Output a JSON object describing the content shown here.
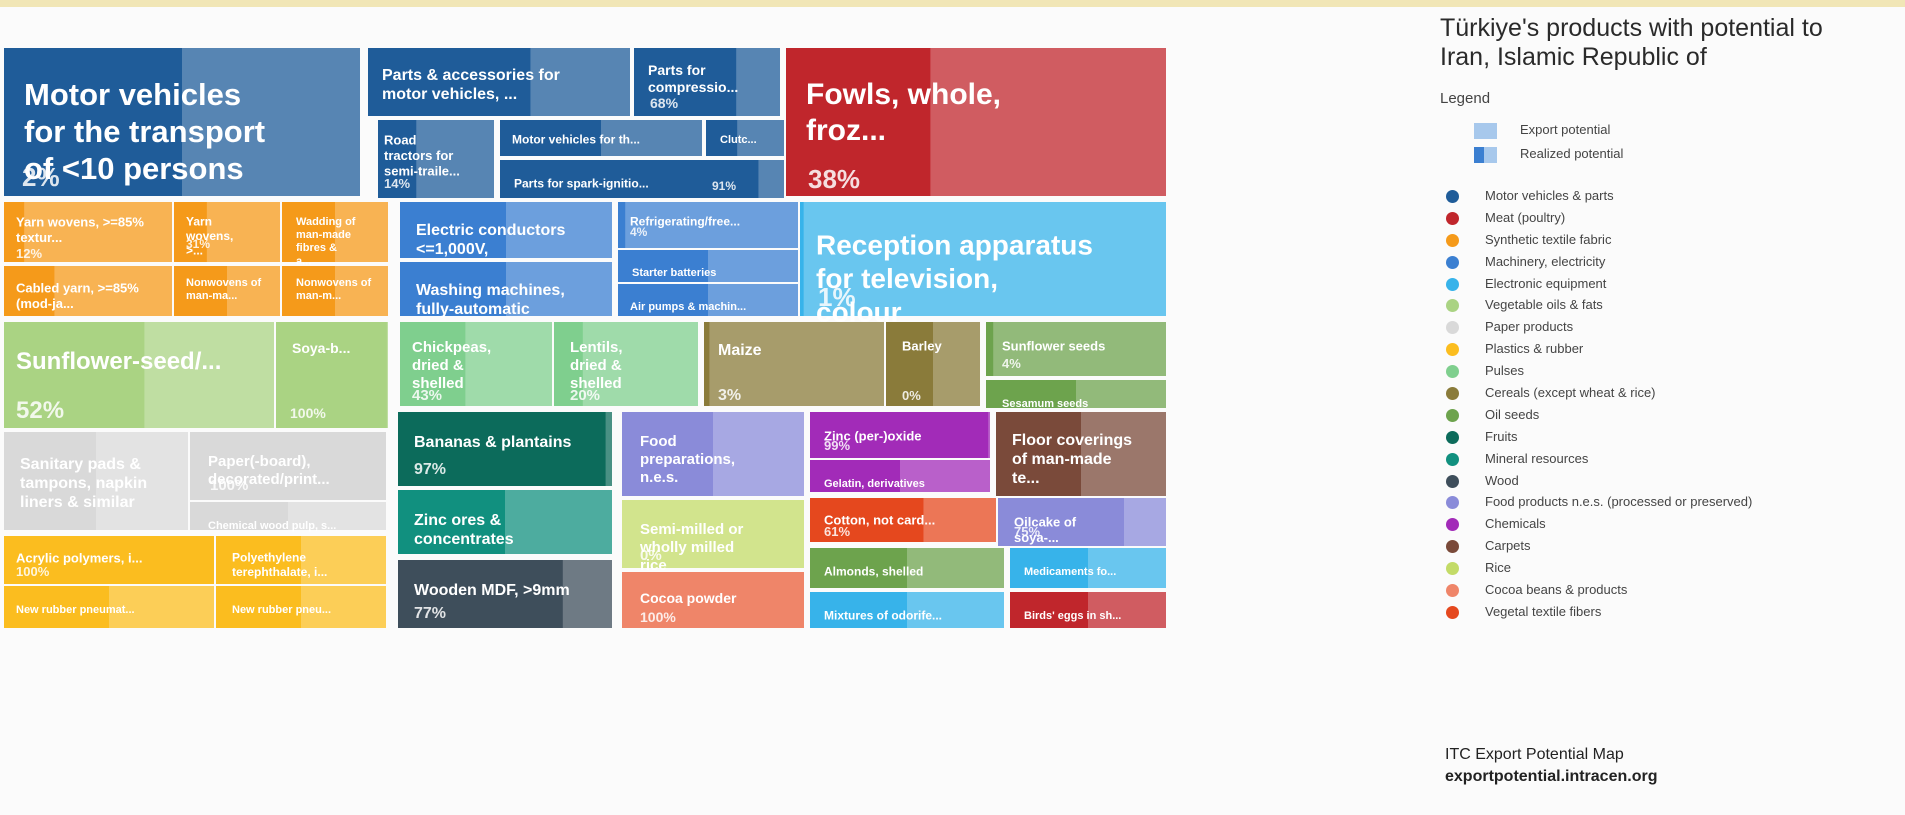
{
  "title": "Türkiye's products with potential to Iran, Islamic Republic of",
  "legend": {
    "heading": "Legend",
    "export_label": "Export potential",
    "realized_label": "Realized potential",
    "sectors": [
      {
        "name": "Motor vehicles & parts",
        "color": "#1f5c99"
      },
      {
        "name": "Meat (poultry)",
        "color": "#c0262c"
      },
      {
        "name": "Synthetic textile fabric",
        "color": "#f59a1a"
      },
      {
        "name": "Machinery, electricity",
        "color": "#3b7fd1"
      },
      {
        "name": "Electronic equipment",
        "color": "#37b3ea"
      },
      {
        "name": "Vegetable oils & fats",
        "color": "#aad383"
      },
      {
        "name": "Paper products",
        "color": "#d9d9d9"
      },
      {
        "name": "Plastics & rubber",
        "color": "#fbbd1f"
      },
      {
        "name": "Pulses",
        "color": "#7fcf8e"
      },
      {
        "name": "Cereals (except wheat & rice)",
        "color": "#8a7b3a"
      },
      {
        "name": "Oil seeds",
        "color": "#6da34d"
      },
      {
        "name": "Fruits",
        "color": "#0c6b5b"
      },
      {
        "name": "Mineral resources",
        "color": "#11907f"
      },
      {
        "name": "Wood",
        "color": "#3e4e5b"
      },
      {
        "name": "Food products n.e.s. (processed or preserved)",
        "color": "#8a8bd9"
      },
      {
        "name": "Chemicals",
        "color": "#a22bb8"
      },
      {
        "name": "Carpets",
        "color": "#7a4a3a"
      },
      {
        "name": "Rice",
        "color": "#c3db67"
      },
      {
        "name": "Cocoa beans & products",
        "color": "#ef8569"
      },
      {
        "name": "Vegetal textile fibers",
        "color": "#e5481e"
      }
    ]
  },
  "footer": {
    "line1": "ITC Export Potential Map",
    "line2": "exportpotential.intracen.org"
  },
  "chart_data": {
    "type": "treemap",
    "title": "Türkiye's products with potential to Iran, Islamic Republic of",
    "tiles": [
      {
        "label": "Motor vehicles for the transport of <10 persons",
        "sector": "Motor vehicles & parts",
        "realized": "2%"
      },
      {
        "label": "Parts & accessories for motor vehicles, ...",
        "sector": "Motor vehicles & parts",
        "realized": ""
      },
      {
        "label": "Parts for compressio...",
        "sector": "Motor vehicles & parts",
        "realized": "68%"
      },
      {
        "label": "Road tractors for semi-traile...",
        "sector": "Motor vehicles & parts",
        "realized": "14%"
      },
      {
        "label": "Motor vehicles for th...",
        "sector": "Motor vehicles & parts",
        "realized": ""
      },
      {
        "label": "Clutc...",
        "sector": "Motor vehicles & parts",
        "realized": ""
      },
      {
        "label": "Parts for spark-ignitio...",
        "sector": "Motor vehicles & parts",
        "realized": "91%"
      },
      {
        "label": "Fowls, whole, froz...",
        "sector": "Meat (poultry)",
        "realized": "38%"
      },
      {
        "label": "Yarn wovens, >=85% textur...",
        "sector": "Synthetic textile fabric",
        "realized": "12%"
      },
      {
        "label": "Yarn wovens, >...",
        "sector": "Synthetic textile fabric",
        "realized": "31%"
      },
      {
        "label": "Wadding of man-made fibres & a...",
        "sector": "Synthetic textile fabric",
        "realized": ""
      },
      {
        "label": "Cabled yarn, >=85% (mod-ja...",
        "sector": "Synthetic textile fabric",
        "realized": ""
      },
      {
        "label": "Nonwovens of man-ma...",
        "sector": "Synthetic textile fabric",
        "realized": ""
      },
      {
        "label": "Nonwovens of man-m...",
        "sector": "Synthetic textile fabric",
        "realized": ""
      },
      {
        "label": "Electric conductors <=1,000V, without...",
        "sector": "Machinery, electricity",
        "realized": ""
      },
      {
        "label": "Refrigerating/free...",
        "sector": "Machinery, electricity",
        "realized": "4%"
      },
      {
        "label": "Starter batteries",
        "sector": "Machinery, electricity",
        "realized": ""
      },
      {
        "label": "Washing machines, fully-automatic",
        "sector": "Machinery, electricity",
        "realized": ""
      },
      {
        "label": "Air pumps & machin...",
        "sector": "Machinery, electricity",
        "realized": ""
      },
      {
        "label": "Reception apparatus for television, colour",
        "sector": "Electronic equipment",
        "realized": "1%"
      },
      {
        "label": "Sunflower-seed/...",
        "sector": "Vegetable oils & fats",
        "realized": "52%"
      },
      {
        "label": "Soya-b...",
        "sector": "Vegetable oils & fats",
        "realized": "100%"
      },
      {
        "label": "Chickpeas, dried & shelled",
        "sector": "Pulses",
        "realized": "43%"
      },
      {
        "label": "Lentils, dried & shelled",
        "sector": "Pulses",
        "realized": "20%"
      },
      {
        "label": "Maize",
        "sector": "Cereals (except wheat & rice)",
        "realized": "3%"
      },
      {
        "label": "Barley",
        "sector": "Cereals (except wheat & rice)",
        "realized": "0%"
      },
      {
        "label": "Sunflower seeds",
        "sector": "Oil seeds",
        "realized": "4%"
      },
      {
        "label": "Sesamum seeds",
        "sector": "Oil seeds",
        "realized": ""
      },
      {
        "label": "Sanitary pads & tampons, napkin liners & similar",
        "sector": "Paper products",
        "realized": ""
      },
      {
        "label": "Paper(-board), decorated/print...",
        "sector": "Paper products",
        "realized": "100%"
      },
      {
        "label": "Chemical wood pulp, s...",
        "sector": "Paper products",
        "realized": ""
      },
      {
        "label": "Bananas & plantains",
        "sector": "Fruits",
        "realized": "97%"
      },
      {
        "label": "Food preparations, n.e.s.",
        "sector": "Food products n.e.s. (processed or preserved)",
        "realized": ""
      },
      {
        "label": "Zinc (per-)oxide",
        "sector": "Chemicals",
        "realized": "99%"
      },
      {
        "label": "Gelatin, derivatives ...",
        "sector": "Chemicals",
        "realized": ""
      },
      {
        "label": "Floor coverings of man-made te...",
        "sector": "Carpets",
        "realized": ""
      },
      {
        "label": "Zinc ores & concentrates",
        "sector": "Mineral resources",
        "realized": ""
      },
      {
        "label": "Semi-milled or wholly milled rice",
        "sector": "Rice",
        "realized": "0%"
      },
      {
        "label": "Cotton, not card...",
        "sector": "Vegetal textile fibers",
        "realized": "61%"
      },
      {
        "label": "Oilcake of soya-...",
        "sector": "Food products n.e.s. (processed or preserved)",
        "realized": "75%"
      },
      {
        "label": "Acrylic polymers, i...",
        "sector": "Plastics & rubber",
        "realized": "100%"
      },
      {
        "label": "Polyethylene terephthalate, i...",
        "sector": "Plastics & rubber",
        "realized": ""
      },
      {
        "label": "New rubber pneumat...",
        "sector": "Plastics & rubber",
        "realized": ""
      },
      {
        "label": "New rubber pneu...",
        "sector": "Plastics & rubber",
        "realized": ""
      },
      {
        "label": "Almonds, shelled",
        "sector": "Oil seeds",
        "realized": ""
      },
      {
        "label": "Medicaments fo...",
        "sector": "Electronic equipment",
        "realized": ""
      },
      {
        "label": "Wooden MDF, >9mm",
        "sector": "Wood",
        "realized": "77%"
      },
      {
        "label": "Cocoa powder",
        "sector": "Cocoa beans & products",
        "realized": "100%"
      },
      {
        "label": "Mixtures of odorife...",
        "sector": "Electronic equipment",
        "realized": ""
      },
      {
        "label": "Birds' eggs in sh...",
        "sector": "Meat (poultry)",
        "realized": ""
      }
    ]
  }
}
